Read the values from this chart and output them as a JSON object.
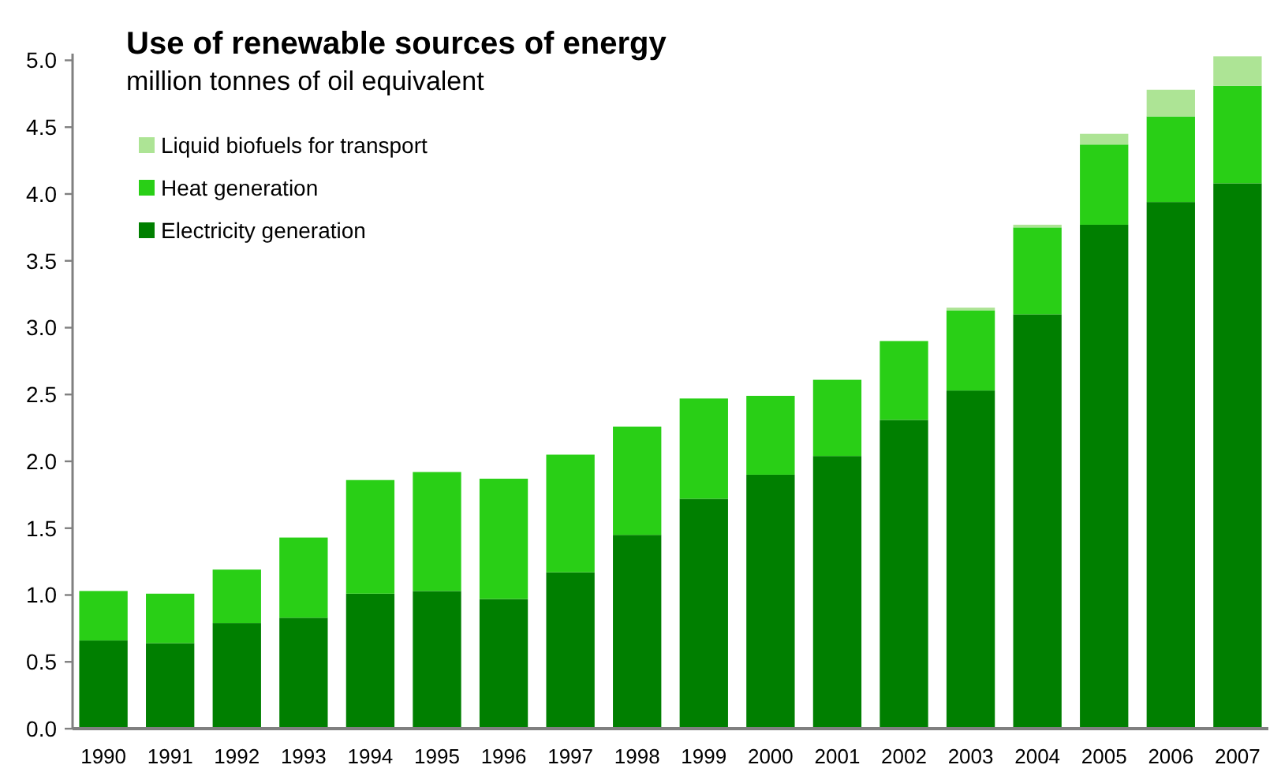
{
  "chart_data": {
    "type": "bar",
    "title": "Use of renewable sources of energy",
    "subtitle": "million tonnes of oil equivalent",
    "categories": [
      "1990",
      "1991",
      "1992",
      "1993",
      "1994",
      "1995",
      "1996",
      "1997",
      "1998",
      "1999",
      "2000",
      "2001",
      "2002",
      "2003",
      "2004",
      "2005",
      "2006",
      "2007"
    ],
    "series": [
      {
        "name": "Electricity generation",
        "color": "#007f00",
        "values": [
          0.66,
          0.64,
          0.79,
          0.83,
          1.01,
          1.03,
          0.97,
          1.17,
          1.45,
          1.72,
          1.9,
          2.04,
          2.31,
          2.53,
          3.1,
          3.77,
          3.94,
          4.08
        ]
      },
      {
        "name": "Heat generation",
        "color": "#29cf16",
        "values": [
          0.37,
          0.37,
          0.4,
          0.6,
          0.85,
          0.89,
          0.9,
          0.88,
          0.81,
          0.75,
          0.59,
          0.57,
          0.59,
          0.6,
          0.65,
          0.6,
          0.64,
          0.73
        ]
      },
      {
        "name": "Liquid biofuels for transport",
        "color": "#ade495",
        "values": [
          null,
          null,
          null,
          null,
          null,
          null,
          null,
          null,
          null,
          null,
          null,
          null,
          null,
          0.02,
          0.02,
          0.08,
          0.2,
          0.22
        ]
      }
    ],
    "stacked": true,
    "ylim": [
      0,
      5.05
    ],
    "yticks": [
      {
        "value": 0,
        "label": "0.0"
      },
      {
        "value": 0.5,
        "label": "0.5"
      },
      {
        "value": 1,
        "label": "1.0"
      },
      {
        "value": 1.5,
        "label": "1.5"
      },
      {
        "value": 2,
        "label": "2.0"
      },
      {
        "value": 2.5,
        "label": "2.5"
      },
      {
        "value": 3,
        "label": "3.0"
      },
      {
        "value": 3.5,
        "label": "3.5"
      },
      {
        "value": 4,
        "label": "4.0"
      },
      {
        "value": 4.5,
        "label": "4.5"
      },
      {
        "value": 5,
        "label": "5.0"
      }
    ],
    "legend": "top left"
  }
}
